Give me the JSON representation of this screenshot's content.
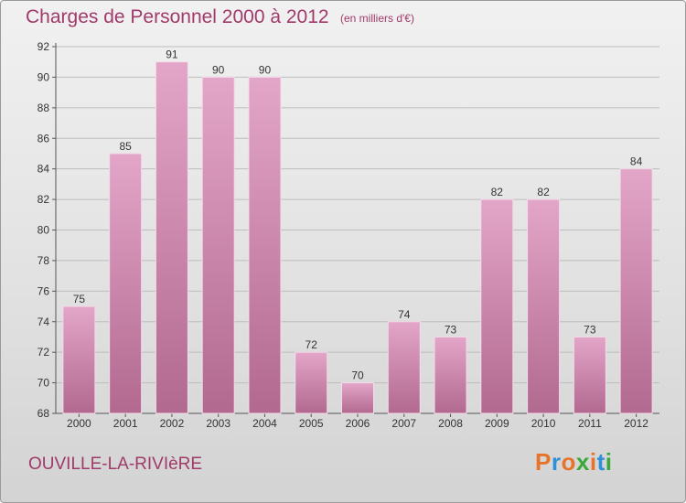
{
  "title": "Charges de Personnel 2000 à 2012",
  "subtitle": "(en milliers d'€)",
  "commune": "OUVILLE-LA-RIVIèRE",
  "brand": {
    "letters": [
      "P",
      "r",
      "o",
      "x",
      "i",
      "t",
      "i"
    ],
    "colors": [
      "#e8742a",
      "#2f8fd8",
      "#e8742a",
      "#3aa83a",
      "#e8742a",
      "#2f8fd8",
      "#3aa83a"
    ]
  },
  "colors": {
    "bar_top": "#e3a6c8",
    "bar_bottom": "#b2698f",
    "text_accent": "#a03a6a",
    "grid": "#bdbdbd"
  },
  "chart_data": {
    "type": "bar",
    "categories": [
      "2000",
      "2001",
      "2002",
      "2003",
      "2004",
      "2005",
      "2006",
      "2007",
      "2008",
      "2009",
      "2010",
      "2011",
      "2012"
    ],
    "values": [
      75,
      85,
      91,
      90,
      90,
      72,
      70,
      74,
      73,
      82,
      82,
      73,
      84
    ],
    "ylim": [
      68,
      92
    ],
    "yticks": [
      68,
      70,
      72,
      74,
      76,
      78,
      80,
      82,
      84,
      86,
      88,
      90,
      92
    ],
    "grid": true,
    "data_labels": true,
    "xlabel": "",
    "ylabel": ""
  }
}
